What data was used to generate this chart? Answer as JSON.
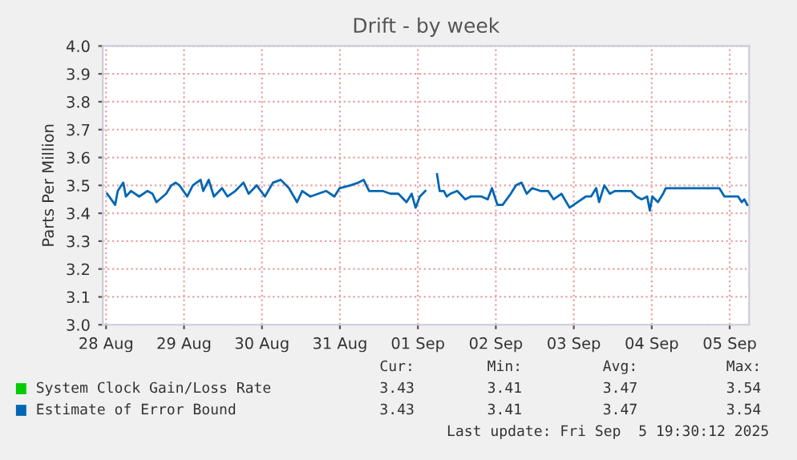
{
  "chart_data": {
    "type": "line",
    "title": "Drift - by week",
    "ylabel": "Parts Per Million",
    "x": [
      "2025-08-28T00:20",
      "2025-08-28T02:48",
      "2025-08-28T03:36",
      "2025-08-28T05:18",
      "2025-08-28T06:06",
      "2025-08-28T07:42",
      "2025-08-28T10:12",
      "2025-08-28T12:42",
      "2025-08-28T14:18",
      "2025-08-28T15:30",
      "2025-08-28T18:30",
      "2025-08-28T20:06",
      "2025-08-28T21:24",
      "2025-08-28T22:36",
      "2025-08-29T01:00",
      "2025-08-29T02:42",
      "2025-08-29T05:06",
      "2025-08-29T05:54",
      "2025-08-29T07:36",
      "2025-08-29T09:12",
      "2025-08-29T11:42",
      "2025-08-29T13:24",
      "2025-08-29T15:48",
      "2025-08-29T18:18",
      "2025-08-29T19:54",
      "2025-08-29T22:24",
      "2025-08-30T00:54",
      "2025-08-30T03:24",
      "2025-08-30T05:48",
      "2025-08-30T08:18",
      "2025-08-30T10:48",
      "2025-08-30T12:24",
      "2025-08-30T14:54",
      "2025-08-30T17:18",
      "2025-08-30T19:48",
      "2025-08-30T22:18",
      "2025-08-30T23:54",
      "2025-08-31T03:12",
      "2025-08-31T05:42",
      "2025-08-31T07:18",
      "2025-08-31T09:00",
      "2025-08-31T10:36",
      "2025-08-31T13:06",
      "2025-08-31T15:36",
      "2025-08-31T18:00",
      "2025-08-31T20:30",
      "2025-08-31T22:06",
      "2025-08-31T23:18",
      "2025-09-01T00:36",
      "2025-09-01T02:18",
      "2025-09-01T04:00",
      "2025-09-01T05:54",
      "2025-09-01T06:42",
      "2025-09-01T08:00",
      "2025-09-01T08:54",
      "2025-09-01T10:00",
      "2025-09-01T12:06",
      "2025-09-01T14:36",
      "2025-09-01T16:18",
      "2025-09-01T19:36",
      "2025-09-01T21:30",
      "2025-09-01T22:48",
      "2025-09-02T00:30",
      "2025-09-02T02:06",
      "2025-09-02T04:36",
      "2025-09-02T06:12",
      "2025-09-02T07:54",
      "2025-09-02T09:30",
      "2025-09-02T11:12",
      "2025-09-02T13:42",
      "2025-09-02T16:06",
      "2025-09-02T17:48",
      "2025-09-02T20:12",
      "2025-09-02T22:42",
      "2025-09-03T01:12",
      "2025-09-03T03:42",
      "2025-09-03T05:18",
      "2025-09-03T06:54",
      "2025-09-03T07:48",
      "2025-09-03T09:24",
      "2025-09-03T11:06",
      "2025-09-03T12:42",
      "2025-09-03T15:12",
      "2025-09-03T17:36",
      "2025-09-03T19:18",
      "2025-09-03T20:54",
      "2025-09-03T22:36",
      "2025-09-03T23:24",
      "2025-09-04T00:12",
      "2025-09-04T01:54",
      "2025-09-04T03:30",
      "2025-09-04T04:18",
      "2025-09-04T20:48",
      "2025-09-04T22:24",
      "2025-09-05T00:54",
      "2025-09-05T02:36",
      "2025-09-05T03:42",
      "2025-09-05T04:30",
      "2025-09-05T05:24"
    ],
    "series": [
      {
        "name": "System Clock Gain/Loss Rate",
        "color": "#00cc00",
        "values": [
          null,
          null,
          null,
          null,
          null,
          null,
          null,
          null,
          null,
          null,
          null,
          null,
          null,
          null,
          null,
          null,
          null,
          null,
          null,
          null,
          null,
          null,
          null,
          null,
          null,
          null,
          null,
          null,
          null,
          null,
          null,
          null,
          null,
          null,
          null,
          null,
          null,
          null,
          null,
          null,
          null,
          null,
          null,
          null,
          null,
          null,
          null,
          null,
          null,
          null,
          null,
          null,
          null,
          null,
          null,
          null,
          null,
          null,
          null,
          null,
          null,
          null,
          null,
          null,
          null,
          null,
          null,
          null,
          null,
          null,
          null,
          null,
          null,
          null,
          null,
          null,
          null,
          null,
          null,
          null,
          null,
          null,
          null,
          null,
          null,
          null,
          null,
          null,
          null,
          null,
          null,
          null,
          null,
          null,
          null,
          null,
          null,
          null,
          null
        ]
      },
      {
        "name": "Estimate of Error Bound",
        "color": "#0066b3",
        "values": [
          3.47,
          3.43,
          3.48,
          3.51,
          3.46,
          3.48,
          3.46,
          3.48,
          3.47,
          3.44,
          3.47,
          3.5,
          3.51,
          3.5,
          3.46,
          3.5,
          3.52,
          3.48,
          3.52,
          3.46,
          3.49,
          3.46,
          3.48,
          3.51,
          3.47,
          3.5,
          3.46,
          3.51,
          3.52,
          3.49,
          3.44,
          3.48,
          3.46,
          3.47,
          3.48,
          3.46,
          3.49,
          3.5,
          3.51,
          3.52,
          3.48,
          3.48,
          3.48,
          3.47,
          3.47,
          3.44,
          3.47,
          3.42,
          3.46,
          3.48,
          null,
          3.54,
          3.48,
          3.48,
          3.46,
          3.47,
          3.48,
          3.45,
          3.46,
          3.46,
          3.45,
          3.49,
          3.43,
          3.43,
          3.47,
          3.5,
          3.51,
          3.47,
          3.49,
          3.48,
          3.48,
          3.45,
          3.47,
          3.42,
          3.44,
          3.46,
          3.46,
          3.49,
          3.44,
          3.5,
          3.47,
          3.48,
          3.48,
          3.48,
          3.46,
          3.45,
          3.46,
          3.41,
          3.46,
          3.44,
          3.47,
          3.49,
          3.49,
          3.46,
          3.46,
          3.46,
          3.44,
          3.45,
          3.43
        ]
      }
    ],
    "xlim": [
      "2025-08-27T23:00",
      "2025-09-05T06:00"
    ],
    "xticks": [
      {
        "value": "2025-08-28",
        "label": "28 Aug"
      },
      {
        "value": "2025-08-29",
        "label": "29 Aug"
      },
      {
        "value": "2025-08-30",
        "label": "30 Aug"
      },
      {
        "value": "2025-08-31",
        "label": "31 Aug"
      },
      {
        "value": "2025-09-01",
        "label": "01 Sep"
      },
      {
        "value": "2025-09-02",
        "label": "02 Sep"
      },
      {
        "value": "2025-09-03",
        "label": "03 Sep"
      },
      {
        "value": "2025-09-04",
        "label": "04 Sep"
      },
      {
        "value": "2025-09-05",
        "label": "05 Sep"
      }
    ],
    "ylim": [
      3.0,
      4.0
    ],
    "yticks": [
      {
        "value": 3,
        "label": "3.0"
      },
      3.1,
      3.2,
      3.3,
      3.4,
      3.5,
      3.6,
      3.7,
      3.8,
      3.9,
      {
        "value": 4,
        "label": "4.0"
      }
    ],
    "grid": true,
    "legend": "bottom",
    "line_style": "solid",
    "marker": "none",
    "annotations": [
      "Cur:",
      "Min:",
      "Avg:",
      "Max:",
      "3.43",
      "3.41",
      "3.47",
      "3.54",
      "3.43",
      "3.41",
      "3.47",
      "3.54",
      "Last update: Fri Sep  5 19:30:12 2025"
    ]
  }
}
